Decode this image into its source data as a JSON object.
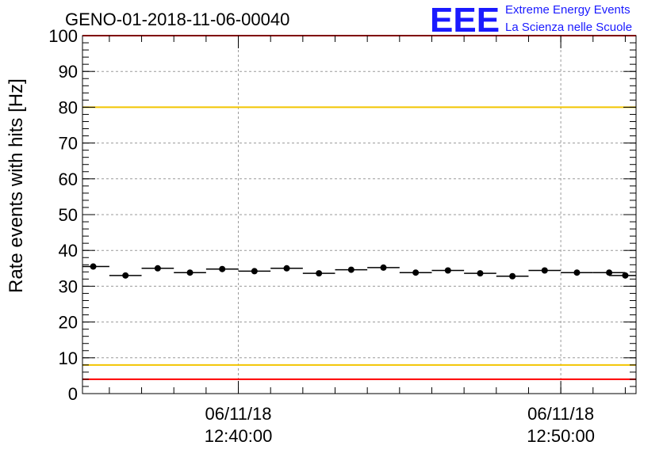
{
  "chart_data": {
    "type": "scatter",
    "title": "GENO-01-2018-11-06-00040",
    "ylabel": "Rate events with hits [Hz]",
    "xlabel": "",
    "ylim": [
      0,
      100
    ],
    "yticks": [
      0,
      10,
      20,
      30,
      40,
      50,
      60,
      70,
      80,
      90,
      100
    ],
    "xlim": [
      "12:35:10",
      "12:52:20"
    ],
    "xticks": [
      {
        "time": "12:40:00",
        "date": "06/11/18"
      },
      {
        "time": "12:50:00",
        "date": "06/11/18"
      }
    ],
    "grid": true,
    "series": [
      {
        "x": [
          "12:35:30",
          "12:36:30",
          "12:37:30",
          "12:38:30",
          "12:39:30",
          "12:40:30",
          "12:41:30",
          "12:42:30",
          "12:43:30",
          "12:44:30",
          "12:45:30",
          "12:46:30",
          "12:47:30",
          "12:48:30",
          "12:49:30",
          "12:50:30",
          "12:51:30",
          "12:52:00"
        ],
        "values": [
          35.5,
          33.0,
          35.0,
          33.8,
          34.8,
          34.2,
          35.0,
          33.6,
          34.6,
          35.2,
          33.8,
          34.4,
          33.6,
          32.8,
          34.4,
          33.8,
          33.8,
          33.0
        ],
        "error_x_seconds": 30
      }
    ],
    "reference_lines": [
      {
        "y": 100,
        "color": "#ff0000"
      },
      {
        "y": 80,
        "color": "#f2c500"
      },
      {
        "y": 8,
        "color": "#f2c500"
      },
      {
        "y": 4,
        "color": "#ff0000"
      }
    ]
  },
  "logo": {
    "mark": "EEE",
    "line1": "Extreme Energy Events",
    "line2": "La Scienza nelle Scuole",
    "color": "#1a1aff"
  }
}
